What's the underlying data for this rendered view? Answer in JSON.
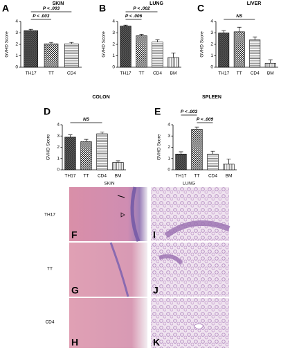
{
  "chart_data": [
    {
      "type": "bar",
      "panel": "A",
      "title": "SKIN",
      "ylabel": "GVHD Score",
      "categories": [
        "TH17",
        "TT",
        "CD4"
      ],
      "values": [
        3.2,
        2.05,
        2.05
      ],
      "errors": [
        0.12,
        0.12,
        0.12
      ],
      "patterns": [
        "crosshatch",
        "checker",
        "hlines"
      ],
      "ylim": [
        0,
        4
      ],
      "yticks": [
        0,
        1,
        2,
        3,
        4
      ],
      "annotations": [
        {
          "text": "P < .003",
          "between": [
            "TH17",
            "TT"
          ]
        },
        {
          "text": "P < .003",
          "between": [
            "TH17",
            "CD4"
          ]
        }
      ]
    },
    {
      "type": "bar",
      "panel": "B",
      "title": "LUNG",
      "ylabel": "GVHD Score",
      "categories": [
        "TH17",
        "TT",
        "CD4",
        "BM"
      ],
      "values": [
        3.6,
        2.75,
        2.2,
        0.85
      ],
      "errors": [
        0.08,
        0.12,
        0.2,
        0.4
      ],
      "patterns": [
        "crosshatch",
        "checker",
        "hlines",
        "vlines"
      ],
      "ylim": [
        0,
        4
      ],
      "yticks": [
        0,
        1,
        2,
        3,
        4
      ],
      "annotations": [
        {
          "text": "P < .006",
          "between": [
            "TH17",
            "TT"
          ]
        },
        {
          "text": "P < .002",
          "between": [
            "TH17",
            "CD4"
          ]
        }
      ]
    },
    {
      "type": "bar",
      "panel": "C",
      "title": "LIVER",
      "ylabel": "GVHD Score",
      "categories": [
        "TH17",
        "TT",
        "CD4",
        "BM"
      ],
      "values": [
        3.0,
        3.1,
        2.4,
        0.35
      ],
      "errors": [
        0.2,
        0.4,
        0.25,
        0.3
      ],
      "patterns": [
        "crosshatch",
        "checker",
        "hlines",
        "vlines"
      ],
      "ylim": [
        0,
        4
      ],
      "yticks": [
        0,
        1,
        2,
        3,
        4
      ],
      "annotations": [
        {
          "text": "NS",
          "between": [
            "TH17",
            "CD4"
          ]
        }
      ]
    },
    {
      "type": "bar",
      "panel": "D",
      "title": "COLON",
      "ylabel": "GVHD Score",
      "categories": [
        "TH17",
        "TT",
        "CD4",
        "BM"
      ],
      "values": [
        2.9,
        2.5,
        3.2,
        0.65
      ],
      "errors": [
        0.2,
        0.2,
        0.15,
        0.15
      ],
      "patterns": [
        "crosshatch",
        "checker",
        "hlines",
        "vlines"
      ],
      "ylim": [
        0,
        4
      ],
      "yticks": [
        0,
        1,
        2,
        3,
        4
      ],
      "annotations": [
        {
          "text": "NS",
          "between": [
            "TH17",
            "CD4"
          ]
        }
      ]
    },
    {
      "type": "bar",
      "panel": "E",
      "title": "SPLEEN",
      "ylabel": "GVHD Score",
      "categories": [
        "TH17",
        "TT",
        "CD4",
        "BM"
      ],
      "values": [
        1.4,
        3.6,
        1.4,
        0.5
      ],
      "errors": [
        0.2,
        0.2,
        0.25,
        0.45
      ],
      "patterns": [
        "crosshatch",
        "checker",
        "hlines",
        "vlines"
      ],
      "ylim": [
        0,
        4
      ],
      "yticks": [
        0,
        1,
        2,
        3,
        4
      ],
      "annotations": [
        {
          "text": "P < .009",
          "between": [
            "TT",
            "CD4"
          ]
        },
        {
          "text": "P < .003",
          "between": [
            "TH17",
            "TT"
          ]
        }
      ]
    }
  ],
  "histology": {
    "column_titles": [
      "SKIN",
      "LUNG"
    ],
    "row_labels": [
      "TH17",
      "TT",
      "CD4"
    ],
    "panel_letters": [
      [
        "F",
        "I"
      ],
      [
        "G",
        "J"
      ],
      [
        "H",
        "K"
      ]
    ]
  }
}
